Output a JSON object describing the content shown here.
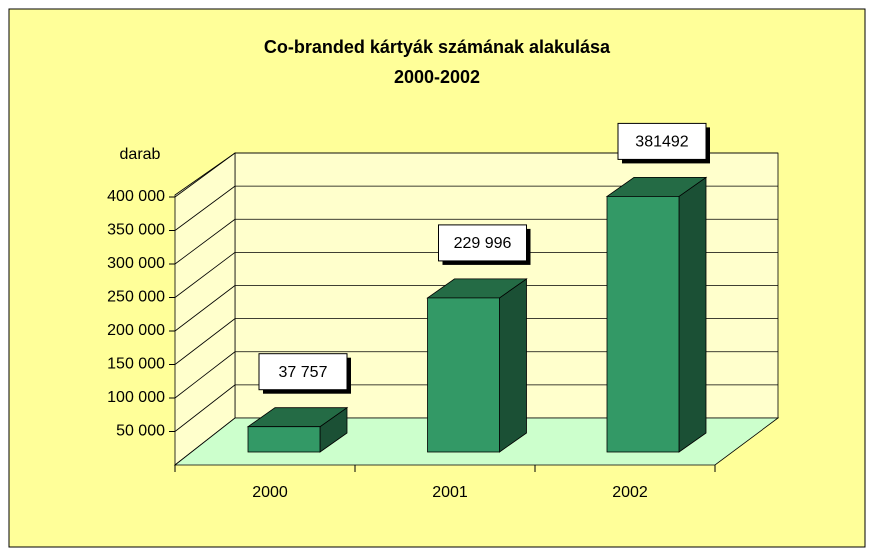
{
  "chart_data": {
    "type": "bar3d",
    "title": "Co-branded kártyák számának alakulása",
    "subtitle": "2000-2002",
    "y_label": "darab",
    "categories": [
      "2000",
      "2001",
      "2002"
    ],
    "values": [
      37757,
      229996,
      381492
    ],
    "value_labels": [
      "37 757",
      "229 996",
      "381492"
    ],
    "color": "#339966",
    "ylim": [
      0,
      400000
    ],
    "yticks": [
      {
        "value": 50000,
        "label": "50 000"
      },
      {
        "value": 100000,
        "label": "100 000"
      },
      {
        "value": 150000,
        "label": "150 000"
      },
      {
        "value": 200000,
        "label": "200 000"
      },
      {
        "value": 250000,
        "label": "250 000"
      },
      {
        "value": 300000,
        "label": "300 000"
      },
      {
        "value": 350000,
        "label": "350 000"
      },
      {
        "value": 400000,
        "label": "400 000"
      }
    ],
    "grid": true
  }
}
